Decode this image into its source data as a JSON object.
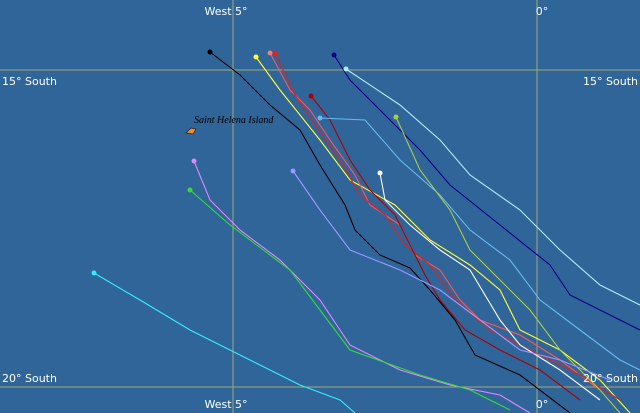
{
  "grid": {
    "longitude_labels": [
      "West 5°",
      "0°"
    ],
    "latitude_labels": [
      "15° South",
      "20° South"
    ]
  },
  "island": {
    "label": "Saint Helena Island"
  }
}
